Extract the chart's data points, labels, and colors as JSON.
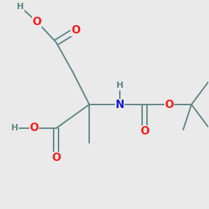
{
  "bg_color": "#eaeaea",
  "bond_color": "#5f8787",
  "bond_width": 1.5,
  "dbo": 0.012,
  "atom_colors": {
    "O": "#ff1a1a",
    "N": "#1a1acc",
    "H": "#5f8787",
    "C": "#5f8787"
  },
  "figsize": [
    3.0,
    3.0
  ],
  "dpi": 100
}
